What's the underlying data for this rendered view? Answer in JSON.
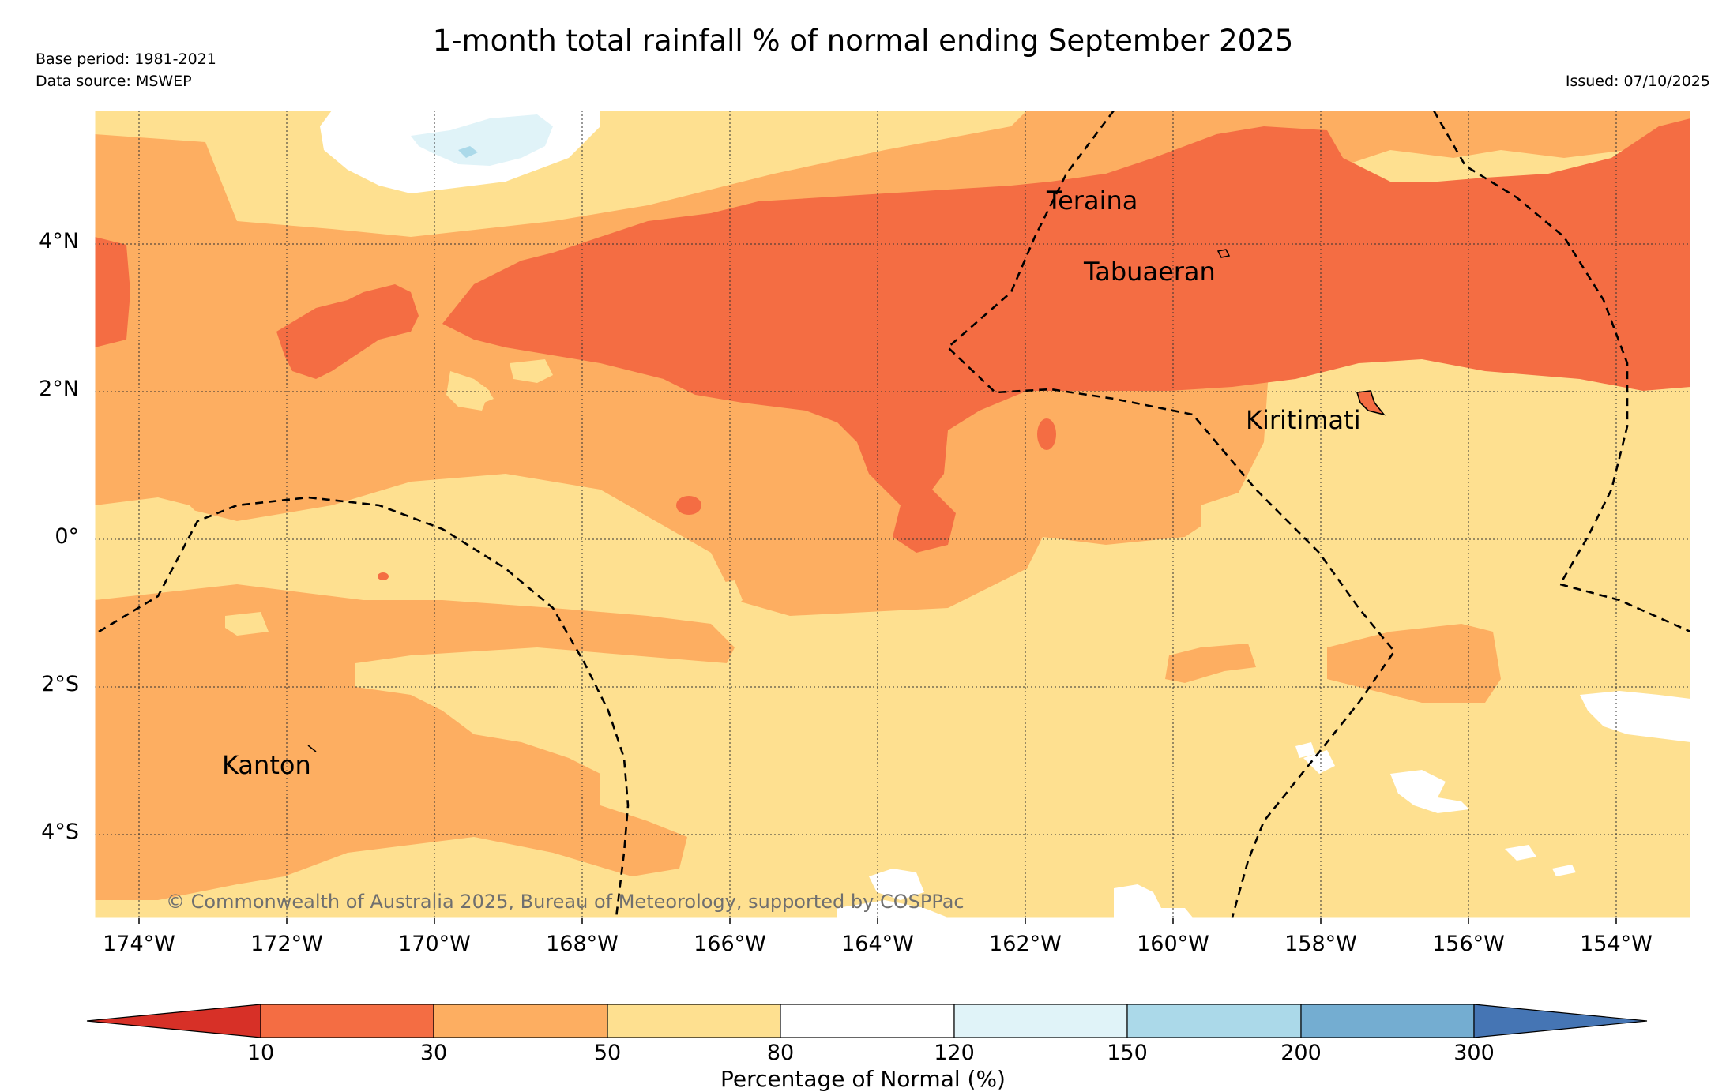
{
  "header": {
    "title": "1-month total rainfall % of normal ending September 2025",
    "base_period": "Base period: 1981-2021",
    "data_source": "Data source: MSWEP",
    "issued": "Issued: 07/10/2025"
  },
  "map": {
    "lat_labels": [
      "4°N",
      "2°N",
      "0°",
      "2°S",
      "4°S"
    ],
    "lon_labels": [
      "174°W",
      "172°W",
      "170°W",
      "168°W",
      "166°W",
      "164°W",
      "162°W",
      "160°W",
      "158°W",
      "156°W",
      "154°W"
    ],
    "places": {
      "teraina": "Teraina",
      "tabuaeran": "Tabuaeran",
      "kiritimati": "Kiritimati",
      "kanton": "Kanton"
    },
    "copyright": "© Commonwealth of Australia 2025, Bureau of Meteorology, supported by COSPPac",
    "colors": {
      "lt10": "#d73027",
      "c10_30": "#f46d43",
      "c30_50": "#fdae61",
      "c50_80": "#fee090",
      "c80_120": "#ffffff",
      "c120_150": "#e0f3f8",
      "c150_200": "#abd9e9",
      "c200_300": "#74add1",
      "gt300": "#4575b4"
    }
  },
  "colorbar": {
    "ticks": [
      "10",
      "30",
      "50",
      "80",
      "120",
      "150",
      "200",
      "300"
    ],
    "label": "Percentage of Normal (%)"
  }
}
